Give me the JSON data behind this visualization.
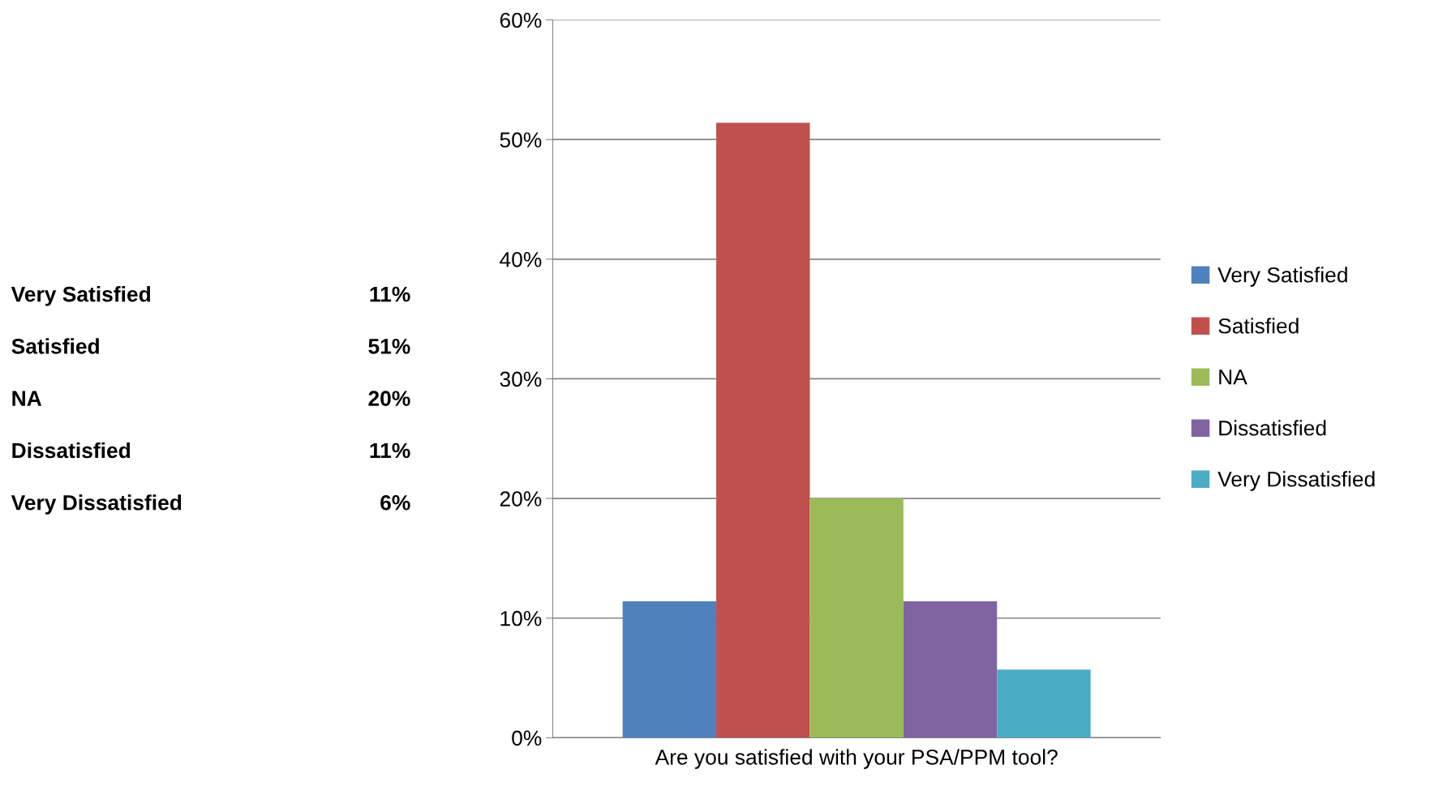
{
  "chart_data": {
    "type": "bar",
    "categories": [
      "Are you satisfied with your PSA/PPM tool?"
    ],
    "series": [
      {
        "name": "Very Satisfied",
        "color": "#4f81bd",
        "values": [
          11.4
        ]
      },
      {
        "name": "Satisfied",
        "color": "#c0504d",
        "values": [
          51.4
        ]
      },
      {
        "name": "NA",
        "color": "#9bbb59",
        "values": [
          20.0
        ]
      },
      {
        "name": "Dissatisfied",
        "color": "#8064a2",
        "values": [
          11.4
        ]
      },
      {
        "name": "Very Dissatisfied",
        "color": "#4bacc6",
        "values": [
          5.7
        ]
      }
    ],
    "annotations": [
      "11%",
      "51%",
      "20%",
      "11%",
      "6%"
    ],
    "ylim": [
      0,
      60
    ],
    "yticks": [
      {
        "value": 0,
        "label": "0%"
      },
      {
        "value": 10,
        "label": "10%"
      },
      {
        "value": 20,
        "label": "20%"
      },
      {
        "value": 30,
        "label": "30%"
      },
      {
        "value": 40,
        "label": "40%"
      },
      {
        "value": 50,
        "label": "50%"
      },
      {
        "value": 60,
        "label": "60%"
      }
    ],
    "grid": "y",
    "legend": "right"
  }
}
